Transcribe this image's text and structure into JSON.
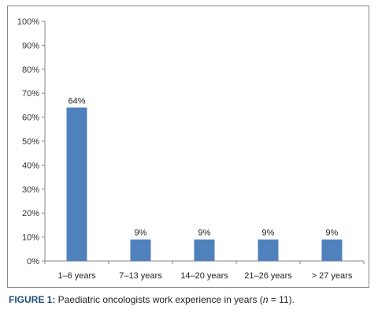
{
  "chart_data": {
    "type": "bar",
    "categories": [
      "1–6 years",
      "7–13 years",
      "14–20 years",
      "21–26 years",
      "> 27 years"
    ],
    "values": [
      64,
      9,
      9,
      9,
      9
    ],
    "data_labels": [
      "64%",
      "9%",
      "9%",
      "9%",
      "9%"
    ],
    "y_ticks": [
      "0%",
      "10%",
      "20%",
      "30%",
      "40%",
      "50%",
      "60%",
      "70%",
      "80%",
      "90%",
      "100%"
    ],
    "ylim": [
      0,
      100
    ],
    "bar_color": "#4f81bd",
    "grid": false,
    "legend": "none"
  },
  "caption": {
    "label": "FIGURE 1:",
    "text_before": " Paediatric oncologists work experience in years (",
    "n_symbol": "n",
    "text_after": " = 11)."
  }
}
